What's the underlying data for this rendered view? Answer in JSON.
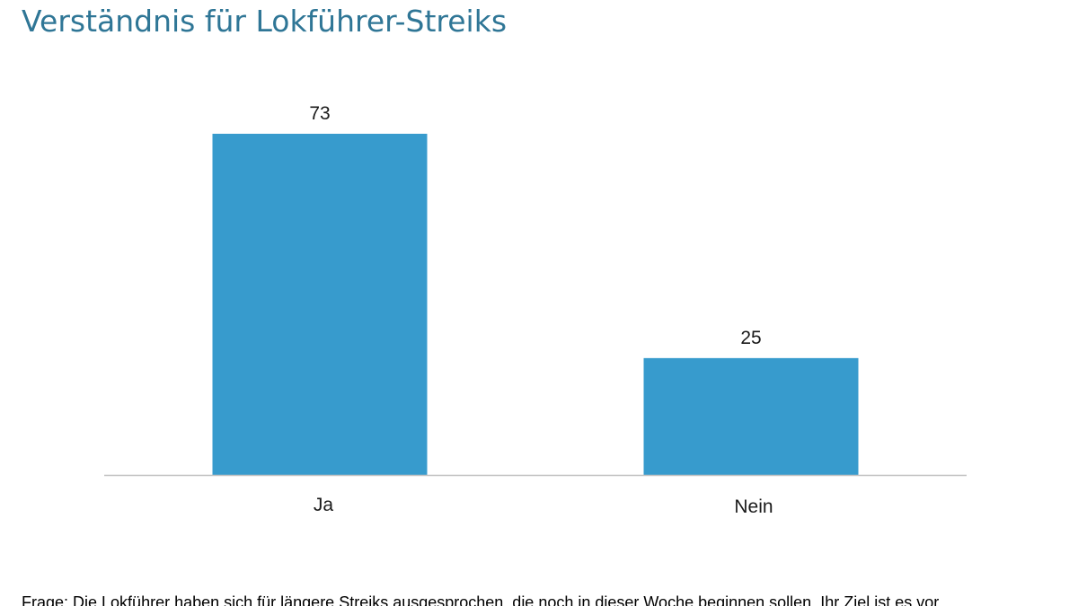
{
  "title": "Verständnis für Lokführer-Streiks",
  "chart_data": {
    "type": "bar",
    "categories": [
      "Ja",
      "Nein"
    ],
    "values": [
      73,
      25
    ],
    "ylim": [
      0,
      73
    ],
    "grid": false,
    "legend": "none",
    "bar_color": "#379bcd",
    "axis_color": "#bfbfbf"
  },
  "question": "Frage: Die Lokführer haben sich für längere Streiks ausgesprochen, die noch in dieser Woche beginnen sollen. Ihr Ziel ist es vor"
}
